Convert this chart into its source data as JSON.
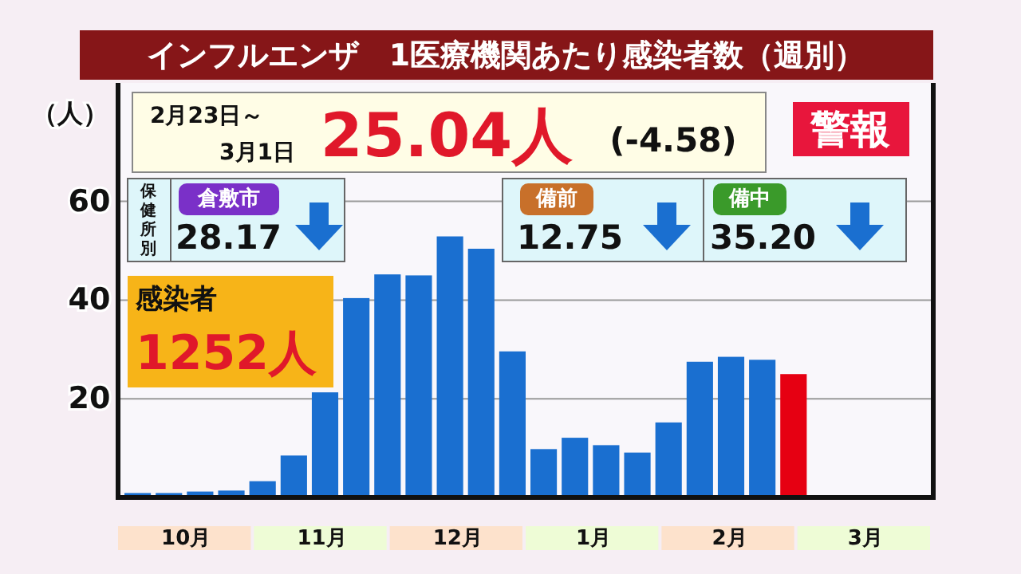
{
  "chart_data": {
    "type": "bar",
    "title": "インフルエンザ　1医療機関あたり感染者数（週別）",
    "ylabel": "（人）",
    "categories": [
      null,
      null,
      null,
      null,
      null,
      null,
      null,
      null,
      null,
      null,
      null,
      null,
      null,
      null,
      null,
      null,
      null,
      null,
      null,
      null,
      null,
      null,
      null,
      null,
      null,
      null
    ],
    "values": [
      0.9,
      0.9,
      1.2,
      1.4,
      3.3,
      8.5,
      21.3,
      40.4,
      45.2,
      45.0,
      52.9,
      50.4,
      29.6,
      9.8,
      12.1,
      10.6,
      9.1,
      15.2,
      27.5,
      28.5,
      27.9,
      25.0,
      null,
      null,
      null,
      null
    ],
    "colors": [
      "#1a6fd0",
      "#1a6fd0",
      "#1a6fd0",
      "#1a6fd0",
      "#1a6fd0",
      "#1a6fd0",
      "#1a6fd0",
      "#1a6fd0",
      "#1a6fd0",
      "#1a6fd0",
      "#1a6fd0",
      "#1a6fd0",
      "#1a6fd0",
      "#1a6fd0",
      "#1a6fd0",
      "#1a6fd0",
      "#1a6fd0",
      "#1a6fd0",
      "#1a6fd0",
      "#1a6fd0",
      "#1a6fd0",
      "#e60012",
      null,
      null,
      null,
      null
    ],
    "ylim": [
      0,
      84
    ],
    "yticks": [
      20,
      40,
      60
    ],
    "grid": "y",
    "annotations": [
      "2月23日～",
      "3月1日",
      "25.04人",
      "(-4.58)",
      "警報",
      "保健所別",
      "倉敷市",
      "28.17",
      "備前",
      "12.75",
      "備中",
      "35.20",
      "感染者",
      "1252人",
      "10月",
      "11月",
      "12月",
      "1月",
      "2月",
      "3月"
    ]
  }
}
